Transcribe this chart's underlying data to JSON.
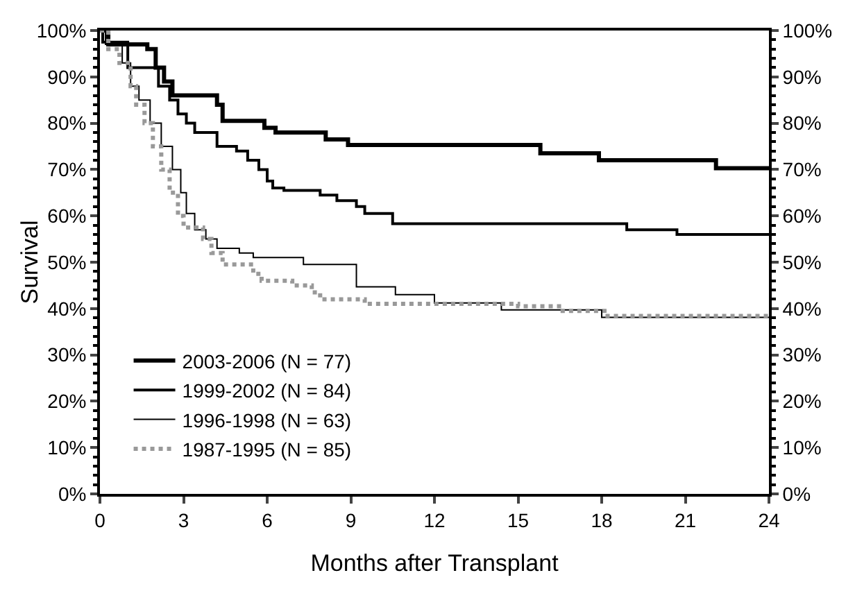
{
  "chart_data": {
    "type": "step",
    "xlabel": "Months after Transplant",
    "ylabel": "Survival",
    "xlim": [
      0,
      24
    ],
    "xticks": [
      0,
      3,
      6,
      9,
      12,
      15,
      18,
      21,
      24
    ],
    "ylim": [
      0,
      100
    ],
    "yticks": [
      {
        "value": 0,
        "label": "0%"
      },
      {
        "value": 10,
        "label": "10%"
      },
      {
        "value": 20,
        "label": "20%"
      },
      {
        "value": 30,
        "label": "30%"
      },
      {
        "value": 40,
        "label": "40%"
      },
      {
        "value": 50,
        "label": "50%"
      },
      {
        "value": 60,
        "label": "60%"
      },
      {
        "value": 70,
        "label": "70%"
      },
      {
        "value": 80,
        "label": "80%"
      },
      {
        "value": 90,
        "label": "90%"
      },
      {
        "value": 100,
        "label": "100%"
      }
    ],
    "y2lim": [
      0,
      100
    ],
    "y2ticks": [
      {
        "value": 0,
        "label": "0%"
      },
      {
        "value": 10,
        "label": "10%"
      },
      {
        "value": 20,
        "label": "20%"
      },
      {
        "value": 30,
        "label": "30%"
      },
      {
        "value": 40,
        "label": "40%"
      },
      {
        "value": 50,
        "label": "50%"
      },
      {
        "value": 60,
        "label": "60%"
      },
      {
        "value": 70,
        "label": "70%"
      },
      {
        "value": 80,
        "label": "80%"
      },
      {
        "value": 90,
        "label": "90%"
      },
      {
        "value": 100,
        "label": "100%"
      }
    ],
    "grid": false,
    "legend": "bottom left",
    "marker": "none",
    "series": [
      {
        "name": "2003-2006 (N = 77)",
        "color": "#000000",
        "line_style": "solid",
        "x": [
          0,
          0.3,
          1.7,
          2.0,
          2.3,
          2.6,
          4.2,
          4.4,
          5.9,
          6.3,
          8.1,
          8.9,
          15.8,
          17.9,
          22.1,
          24
        ],
        "values": [
          100,
          97,
          96,
          92,
          89,
          86,
          84,
          80.5,
          79,
          78,
          76.5,
          75.3,
          73.5,
          72,
          70.3,
          70.3
        ]
      },
      {
        "name": "1999-2002 (N = 84)",
        "color": "#000000",
        "line_style": "solid",
        "x": [
          0,
          0.1,
          1.0,
          2.1,
          2.5,
          2.8,
          3.1,
          3.4,
          4.2,
          4.9,
          5.3,
          5.7,
          6.0,
          6.2,
          6.6,
          7.9,
          8.5,
          9.2,
          9.5,
          10.5,
          18.9,
          20.7,
          24
        ],
        "values": [
          100,
          97.5,
          92,
          88,
          85,
          82,
          80,
          78,
          75,
          74,
          72,
          70,
          67.5,
          66,
          65.5,
          64.5,
          63.3,
          62,
          60.5,
          58.3,
          57,
          56,
          56
        ]
      },
      {
        "name": "1996-1998 (N = 63)",
        "color": "#000000",
        "line_style": "solid",
        "x": [
          0,
          0.2,
          0.8,
          1.1,
          1.4,
          1.8,
          2.2,
          2.6,
          2.9,
          3.1,
          3.4,
          3.8,
          4.2,
          5.0,
          5.5,
          7.3,
          9.2,
          10.6,
          12.0,
          14.4,
          18.0,
          24
        ],
        "values": [
          100,
          97,
          93,
          88,
          85,
          80,
          75,
          70,
          65,
          60.5,
          57,
          55,
          53,
          52,
          51,
          49.5,
          44.7,
          43,
          41.2,
          39.7,
          38.1,
          38.1
        ]
      },
      {
        "name": "1987-1995 (N = 85)",
        "color": "#999999",
        "line_style": "dotted",
        "x": [
          0,
          0.3,
          0.7,
          1.1,
          1.3,
          1.6,
          1.9,
          2.2,
          2.5,
          2.8,
          3.0,
          3.7,
          4.0,
          4.4,
          5.5,
          5.8,
          6.9,
          7.6,
          7.9,
          9.5,
          15.0,
          16.6,
          18.1,
          24
        ],
        "values": [
          100,
          96,
          93,
          88,
          84,
          80,
          75,
          70,
          65,
          60,
          57.5,
          55,
          52,
          49.5,
          47.5,
          46,
          45,
          43.5,
          42,
          41,
          40.5,
          39.5,
          38.4,
          38.4
        ]
      }
    ]
  }
}
